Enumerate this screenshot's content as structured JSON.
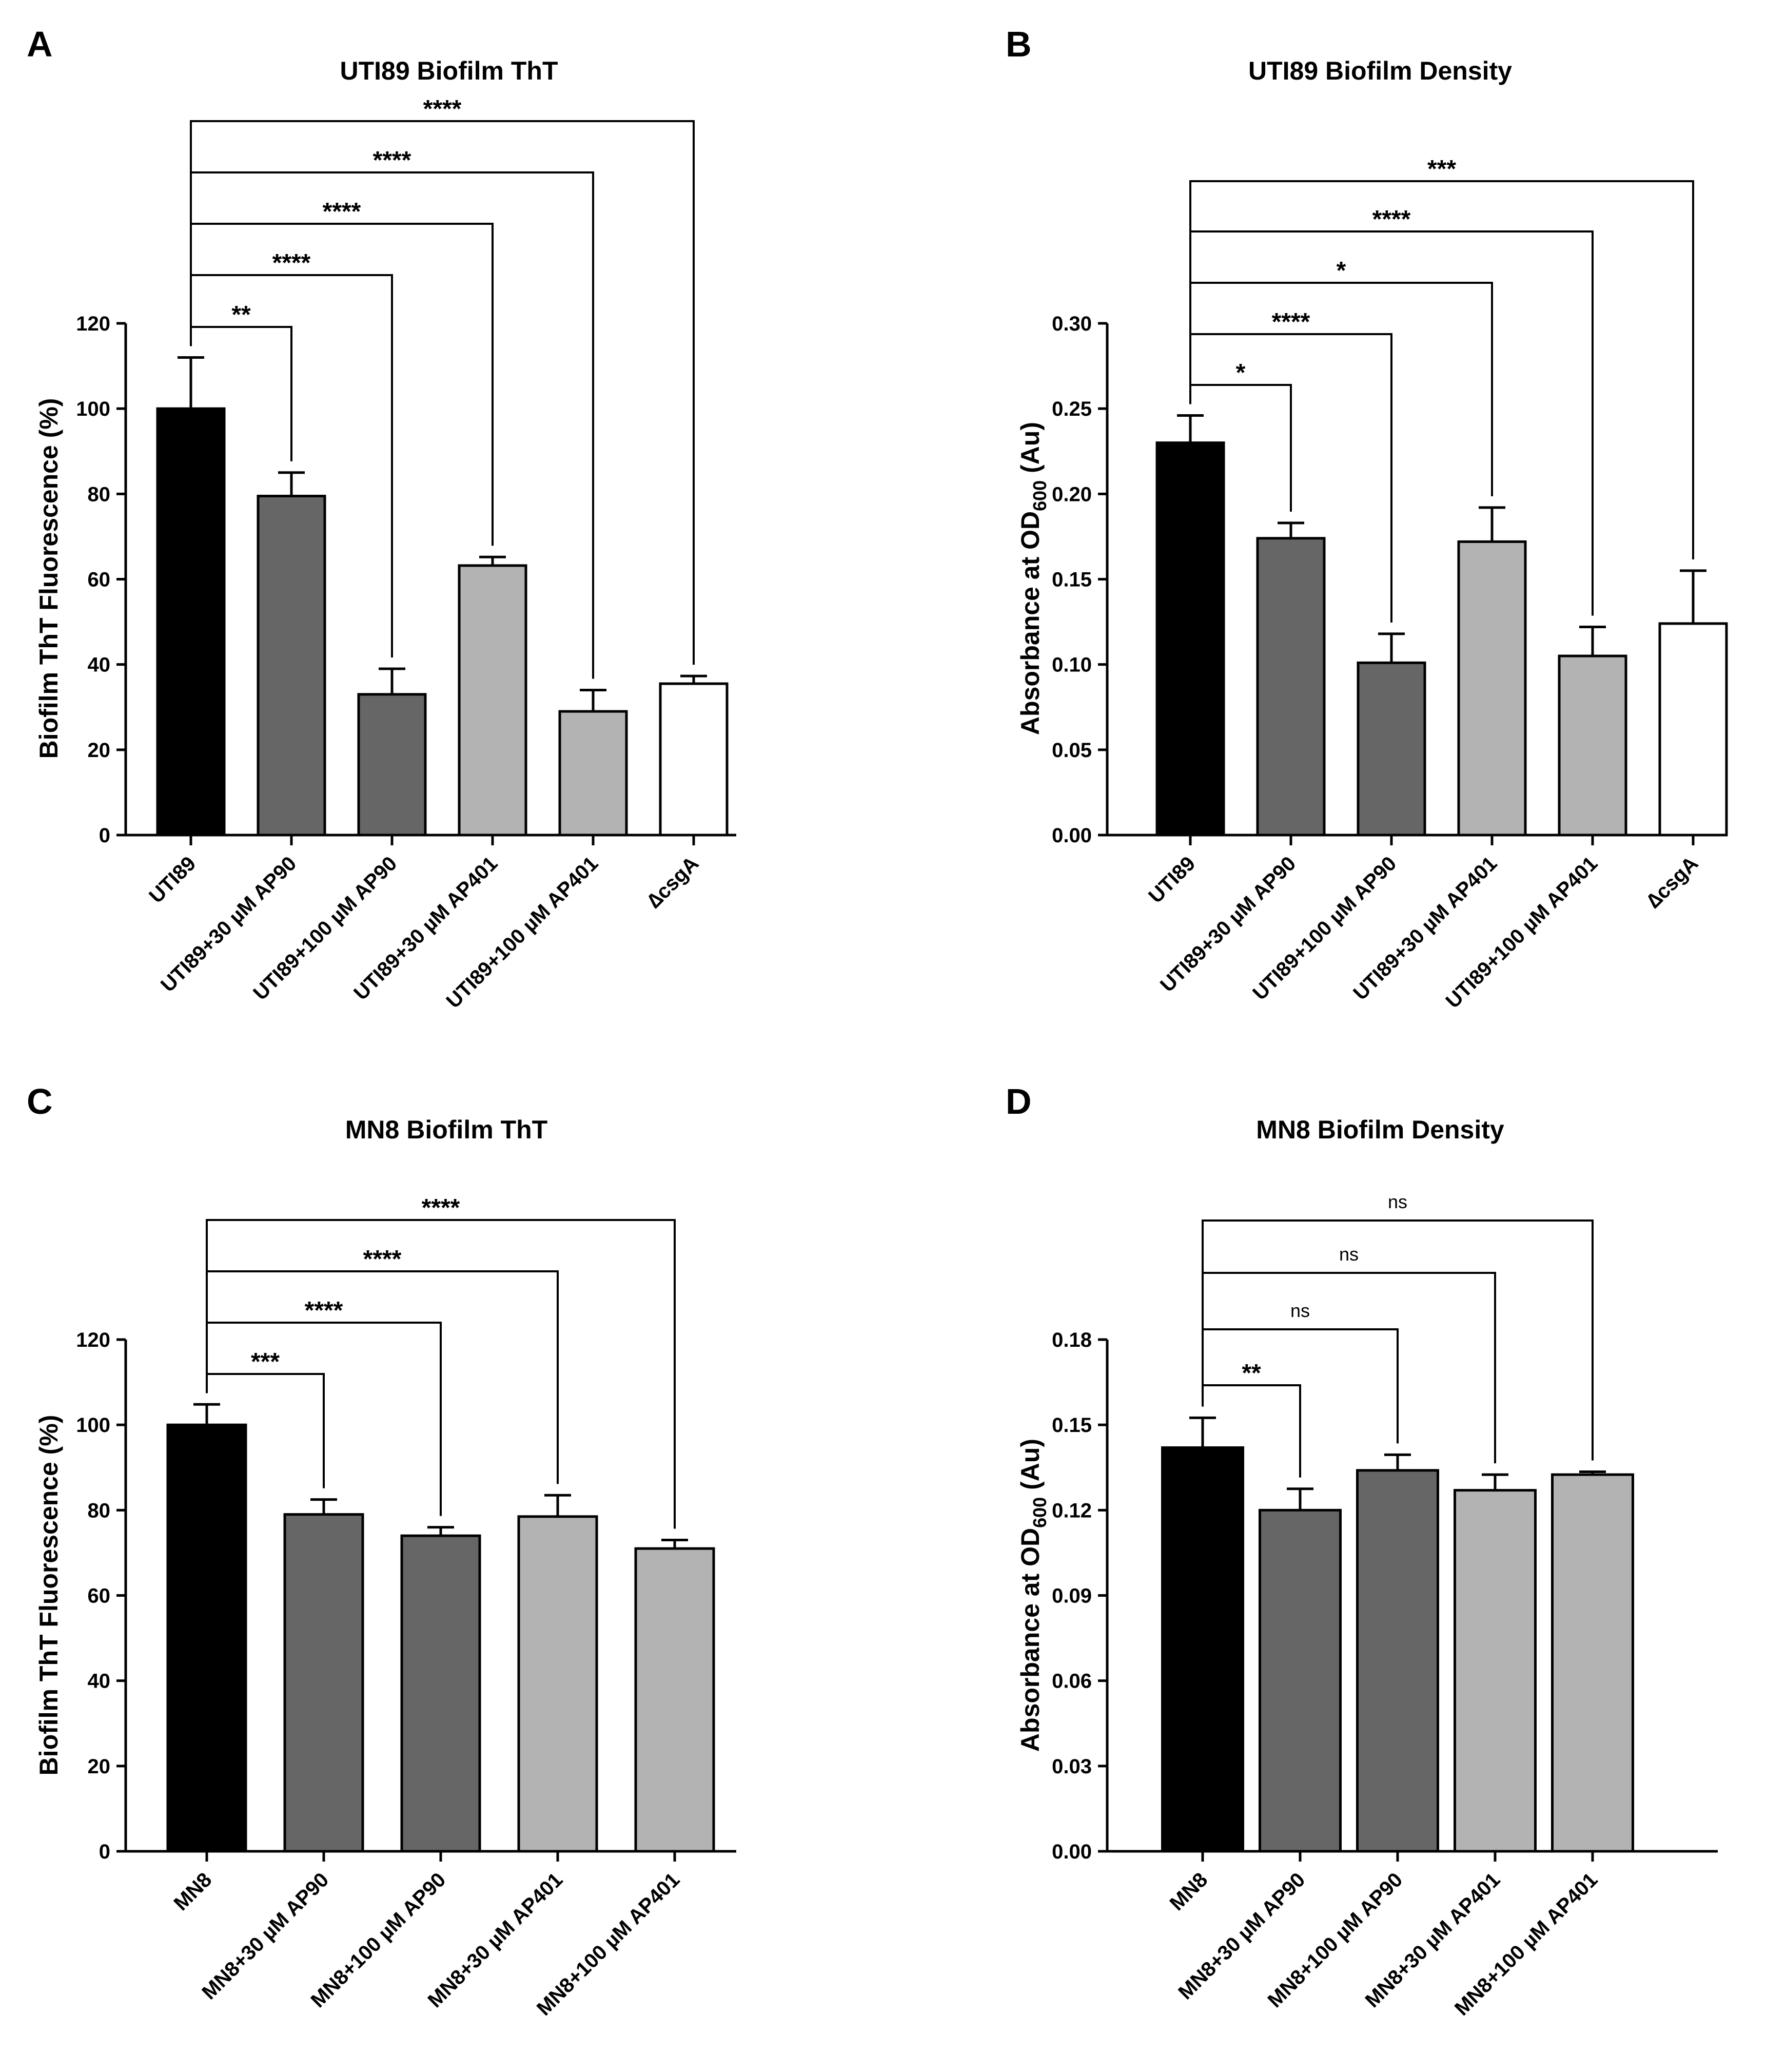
{
  "chart_data": [
    {
      "panel": "A",
      "type": "bar",
      "title": "UTI89 Biofilm ThT",
      "xlabel": "",
      "ylabel": "Biofilm ThT Fluorescence (%)",
      "ylim": [
        0,
        120
      ],
      "yticks": [
        0,
        20,
        40,
        60,
        80,
        100,
        120
      ],
      "ytick_labels": [
        "0",
        "20",
        "40",
        "60",
        "80",
        "100",
        "120"
      ],
      "categories": [
        "UTI89",
        "UTI89+30 µM AP90",
        "UTI89+100 µM AP90",
        "UTI89+30 µM AP401",
        "UTI89+100 µM AP401",
        "∆csgA"
      ],
      "values": [
        100,
        79.5,
        33,
        63.2,
        29,
        35.5
      ],
      "errors": [
        12,
        5.5,
        6,
        2,
        5,
        1.8
      ],
      "colors": [
        "#000000",
        "#666666",
        "#666666",
        "#b3b3b3",
        "#b3b3b3",
        "#ffffff"
      ],
      "comparisons": [
        {
          "from": 0,
          "to": 1,
          "label": "**"
        },
        {
          "from": 0,
          "to": 2,
          "label": "****"
        },
        {
          "from": 0,
          "to": 3,
          "label": "****"
        },
        {
          "from": 0,
          "to": 4,
          "label": "****"
        },
        {
          "from": 0,
          "to": 5,
          "label": "****"
        }
      ]
    },
    {
      "panel": "B",
      "type": "bar",
      "title": "UTI89 Biofilm Density",
      "xlabel": "",
      "ylabel": "Absorbance at OD",
      "ylabel_sub": "600",
      "ylabel_suffix": " (Au)",
      "ylim": [
        0,
        0.3
      ],
      "yticks": [
        0,
        0.05,
        0.1,
        0.15,
        0.2,
        0.25,
        0.3
      ],
      "ytick_labels": [
        "0.00",
        "0.05",
        "0.10",
        "0.15",
        "0.20",
        "0.25",
        "0.30"
      ],
      "categories": [
        "UTI89",
        "UTI89+30 µM AP90",
        "UTI89+100 µM AP90",
        "UTI89+30 µM AP401",
        "UTI89+100 µM AP401",
        "∆csgA"
      ],
      "values": [
        0.23,
        0.174,
        0.101,
        0.172,
        0.105,
        0.124
      ],
      "errors": [
        0.016,
        0.009,
        0.017,
        0.02,
        0.017,
        0.031
      ],
      "colors": [
        "#000000",
        "#666666",
        "#666666",
        "#b3b3b3",
        "#b3b3b3",
        "#ffffff"
      ],
      "comparisons": [
        {
          "from": 0,
          "to": 1,
          "label": "*"
        },
        {
          "from": 0,
          "to": 2,
          "label": "****"
        },
        {
          "from": 0,
          "to": 3,
          "label": "*"
        },
        {
          "from": 0,
          "to": 4,
          "label": "****"
        },
        {
          "from": 0,
          "to": 5,
          "label": "***"
        }
      ]
    },
    {
      "panel": "C",
      "type": "bar",
      "title": "MN8 Biofilm ThT",
      "xlabel": "",
      "ylabel": "Biofilm ThT Fluorescence (%)",
      "ylim": [
        0,
        120
      ],
      "yticks": [
        0,
        20,
        40,
        60,
        80,
        100,
        120
      ],
      "ytick_labels": [
        "0",
        "20",
        "40",
        "60",
        "80",
        "100",
        "120"
      ],
      "categories": [
        "MN8",
        "MN8+30 µM AP90",
        "MN8+100 µM AP90",
        "MN8+30 µM AP401",
        "MN8+100 µM AP401"
      ],
      "values": [
        100,
        79,
        74,
        78.5,
        71
      ],
      "errors": [
        4.8,
        3.5,
        2,
        5,
        2
      ],
      "colors": [
        "#000000",
        "#666666",
        "#666666",
        "#b3b3b3",
        "#b3b3b3"
      ],
      "comparisons": [
        {
          "from": 0,
          "to": 1,
          "label": "***"
        },
        {
          "from": 0,
          "to": 2,
          "label": "****"
        },
        {
          "from": 0,
          "to": 3,
          "label": "****"
        },
        {
          "from": 0,
          "to": 4,
          "label": "****"
        }
      ]
    },
    {
      "panel": "D",
      "type": "bar",
      "title": "MN8 Biofilm Density",
      "xlabel": "",
      "ylabel": "Absorbance at OD",
      "ylabel_sub": "600",
      "ylabel_suffix": " (Au)",
      "ylim": [
        0,
        0.18
      ],
      "yticks": [
        0,
        0.03,
        0.06,
        0.09,
        0.12,
        0.15,
        0.18
      ],
      "ytick_labels": [
        "0.00",
        "0.03",
        "0.06",
        "0.09",
        "0.12",
        "0.15",
        "0.18"
      ],
      "categories": [
        "MN8",
        "MN8+30 µM AP90",
        "MN8+100 µM AP90",
        "MN8+30 µM AP401",
        "MN8+100 µM AP401"
      ],
      "values": [
        0.142,
        0.12,
        0.134,
        0.127,
        0.1325
      ],
      "errors": [
        0.0105,
        0.0075,
        0.0055,
        0.0055,
        0.001
      ],
      "colors": [
        "#000000",
        "#666666",
        "#666666",
        "#b3b3b3",
        "#b3b3b3"
      ],
      "comparisons": [
        {
          "from": 0,
          "to": 1,
          "label": "**"
        },
        {
          "from": 0,
          "to": 2,
          "label": "ns"
        },
        {
          "from": 0,
          "to": 3,
          "label": "ns"
        },
        {
          "from": 0,
          "to": 4,
          "label": "ns"
        }
      ]
    }
  ]
}
